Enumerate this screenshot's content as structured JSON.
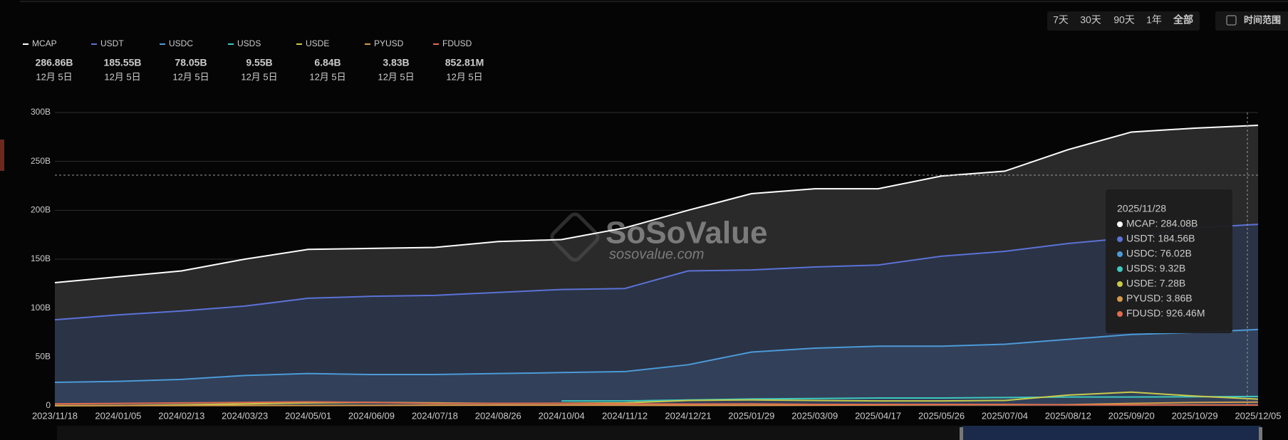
{
  "chart_data": {
    "type": "line",
    "buttons": [
      "7天",
      "30天",
      "90天",
      "1年",
      "全部"
    ],
    "range_button": "时间范围",
    "watermark": "SoSoValue",
    "watermark_url": "sosovalue.com",
    "categories": [
      "2023/11/18",
      "2024/01/05",
      "2024/02/13",
      "2024/03/23",
      "2024/05/01",
      "2024/06/09",
      "2024/07/18",
      "2024/08/26",
      "2024/10/04",
      "2024/11/12",
      "2024/12/21",
      "2025/01/29",
      "2025/03/09",
      "2025/04/17",
      "2025/05/26",
      "2025/07/04",
      "2025/08/12",
      "2025/09/20",
      "2025/10/29",
      "2025/12/05"
    ],
    "ylim": [
      0,
      300
    ],
    "yticks": [
      0,
      {
        "value": 50,
        "label": "50B"
      },
      {
        "value": 100,
        "label": "100B"
      },
      {
        "value": 150,
        "label": "150B"
      },
      {
        "value": 200,
        "label": "200B"
      },
      {
        "value": 250,
        "label": "250B"
      },
      {
        "value": 300,
        "label": "300B"
      }
    ],
    "grid": true,
    "series": [
      {
        "name": "MCAP",
        "color": "#ffffff",
        "area": "#2a2a2a",
        "latest": "286.86B",
        "latest_date": "12月 5日",
        "values": [
          126,
          132,
          138,
          150,
          160,
          161,
          162,
          168,
          170,
          182,
          200,
          217,
          222,
          222,
          235,
          240,
          262,
          280,
          284,
          286.86
        ]
      },
      {
        "name": "USDT",
        "color": "#5b72d6",
        "area": "#2b3346",
        "latest": "185.55B",
        "latest_date": "12月 5日",
        "values": [
          88,
          93,
          97,
          102,
          110,
          112,
          113,
          116,
          119,
          120,
          138,
          139,
          142,
          144,
          153,
          158,
          166,
          172,
          182,
          185.55
        ]
      },
      {
        "name": "USDC",
        "color": "#4b9ad8",
        "area": "#324059",
        "latest": "78.05B",
        "latest_date": "12月 5日",
        "values": [
          24,
          25,
          27,
          31,
          33,
          32,
          32,
          33,
          34,
          35,
          42,
          55,
          59,
          61,
          61,
          63,
          68,
          73,
          75,
          78.05
        ]
      },
      {
        "name": "USDS",
        "color": "#3ec8c0",
        "latest": "9.55B",
        "latest_date": "12月 5日",
        "values": [
          null,
          null,
          null,
          null,
          null,
          null,
          null,
          null,
          5,
          5,
          6,
          7,
          7.5,
          8,
          8,
          8.5,
          9,
          9,
          9.3,
          9.55
        ]
      },
      {
        "name": "USDE",
        "color": "#c9c94a",
        "latest": "6.84B",
        "latest_date": "12月 5日",
        "values": [
          0.1,
          0.3,
          1,
          2,
          3,
          3.5,
          3,
          2.5,
          2.6,
          3,
          5.5,
          6,
          5.5,
          5,
          5,
          5.5,
          11,
          14,
          10,
          6.84
        ]
      },
      {
        "name": "PYUSD",
        "color": "#d49a4a",
        "latest": "3.83B",
        "latest_date": "12月 5日",
        "values": [
          0.3,
          0.3,
          0.3,
          0.4,
          0.4,
          0.5,
          0.6,
          0.7,
          0.7,
          0.6,
          0.5,
          0.5,
          0.6,
          0.8,
          1,
          1,
          1.2,
          2.5,
          3.5,
          3.83
        ]
      },
      {
        "name": "FDUSD",
        "color": "#e06b4d",
        "latest": "852.81M",
        "latest_date": "12月 5日",
        "values": [
          2,
          2.5,
          3,
          3.5,
          4,
          3.5,
          2.5,
          2.5,
          2.5,
          2,
          1.8,
          2,
          1.5,
          1.5,
          1.5,
          1.5,
          1,
          0.9,
          0.9,
          0.85
        ]
      }
    ],
    "tooltip": {
      "date": "2025/11/28",
      "items": [
        "MCAP: 284.08B",
        "USDT: 184.56B",
        "USDC: 76.02B",
        "USDS: 9.32B",
        "USDE: 7.28B",
        "PYUSD: 3.86B",
        "FDUSD: 926.46M"
      ]
    }
  }
}
